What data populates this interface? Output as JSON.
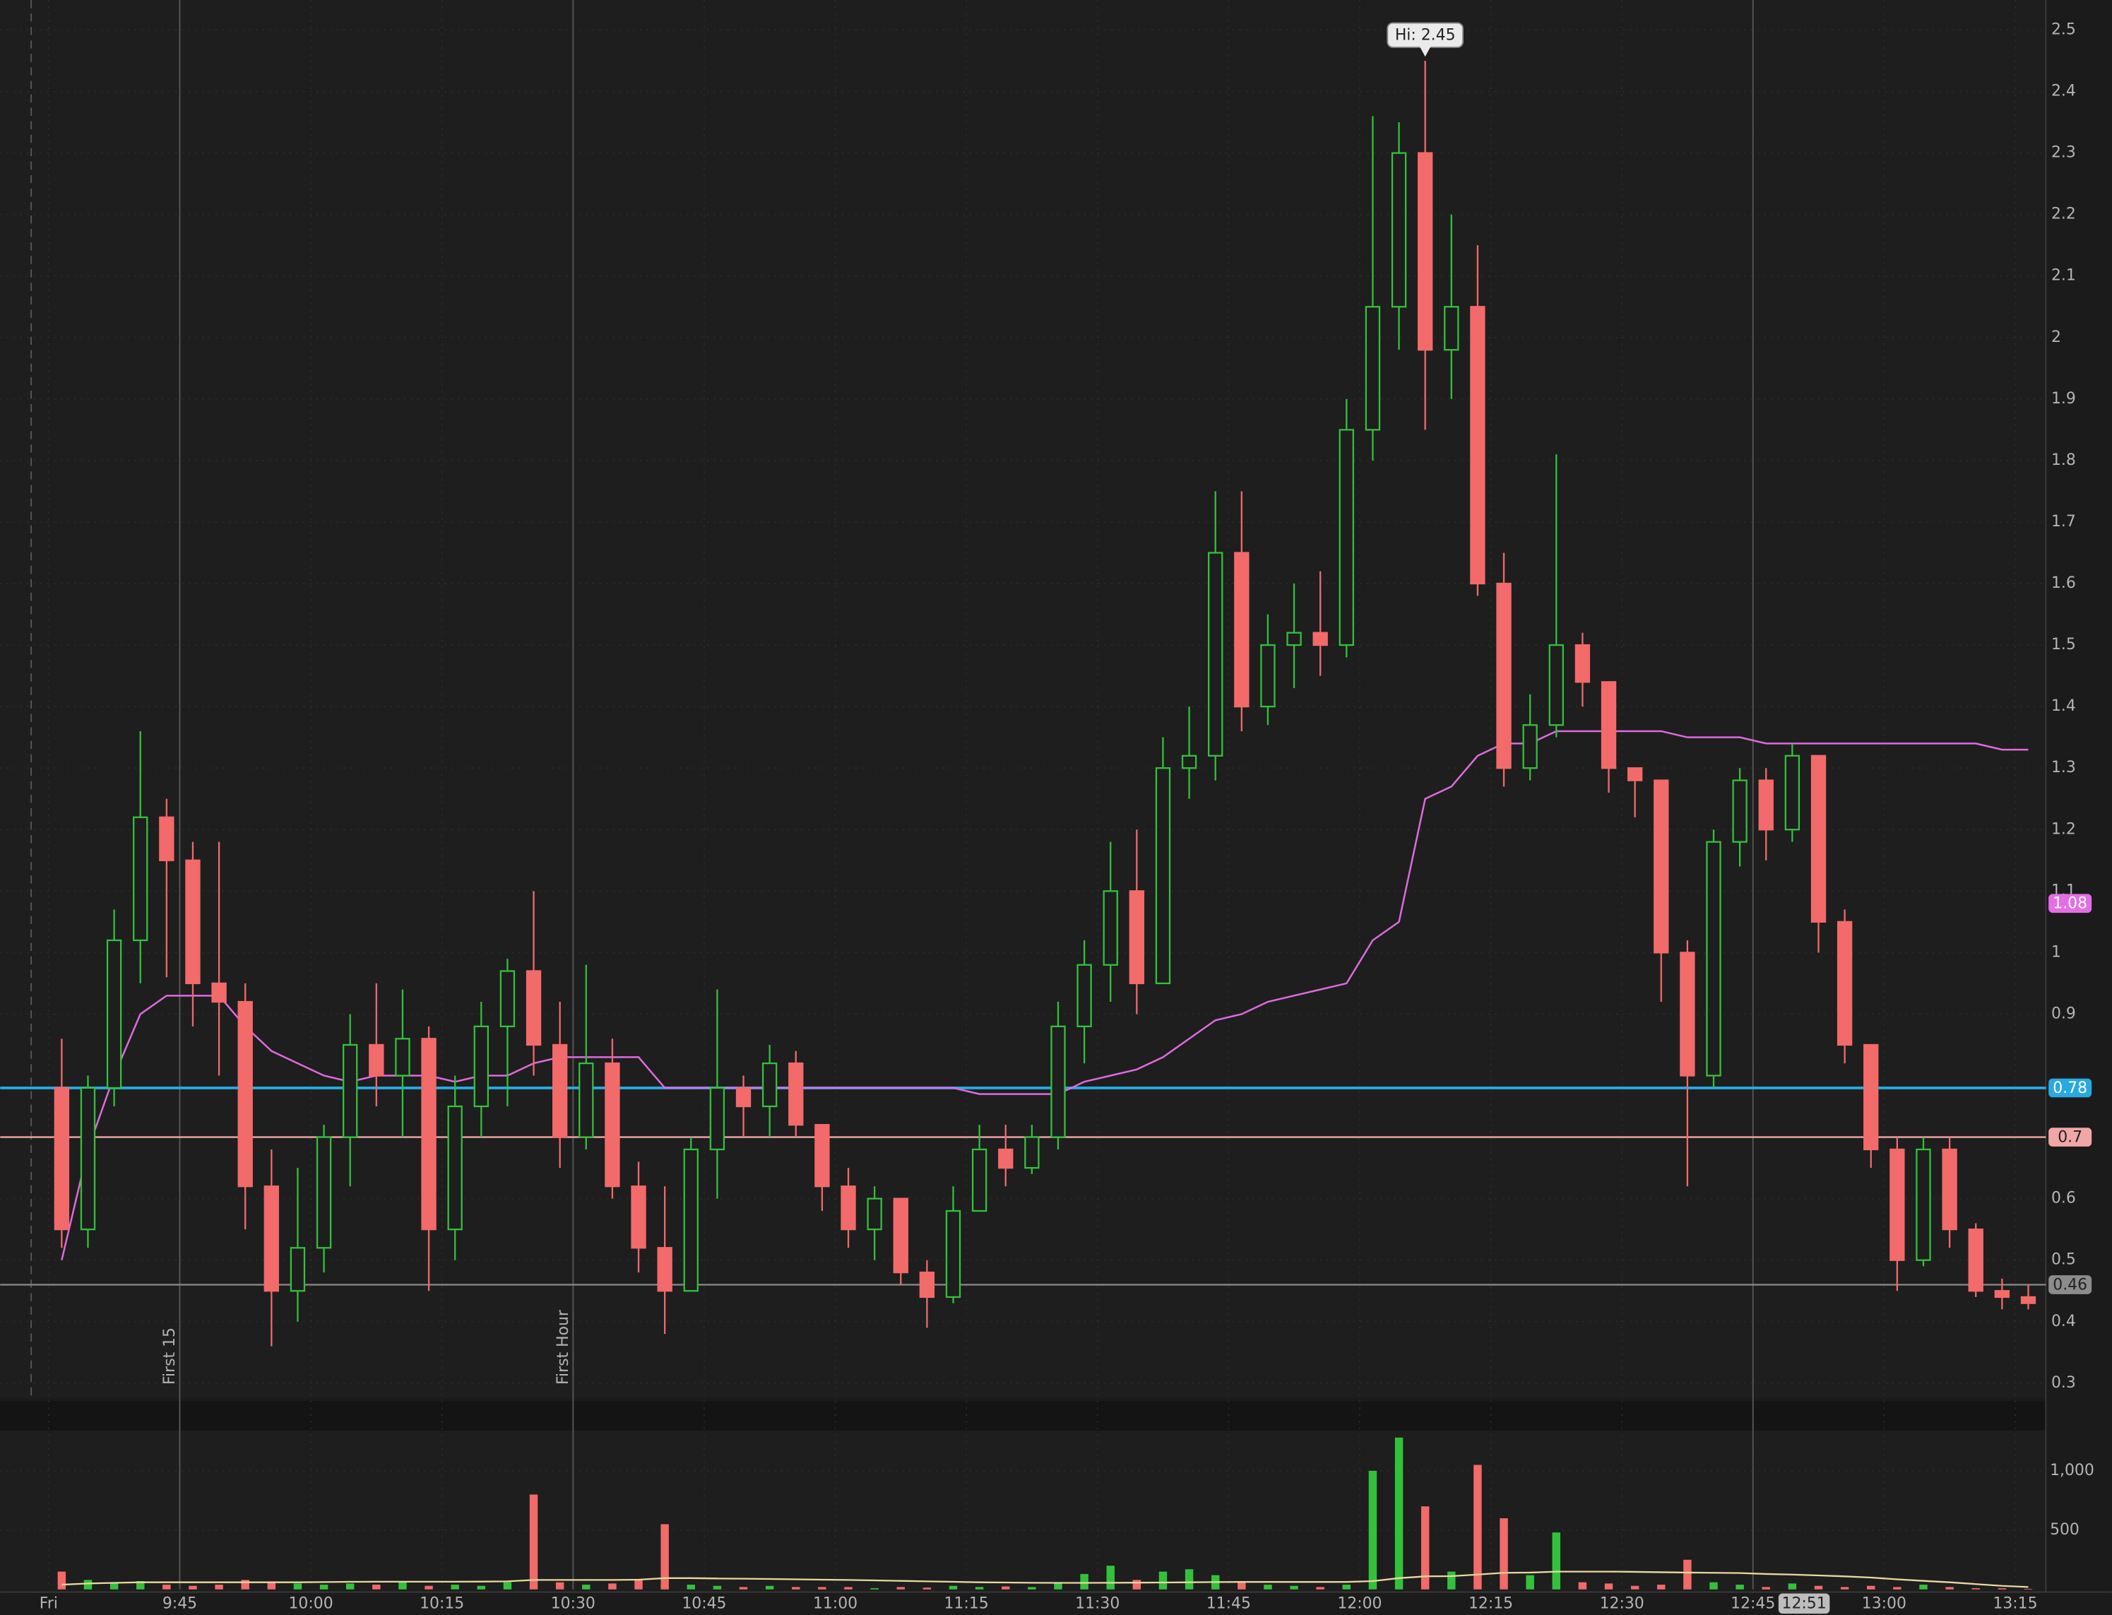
{
  "chart_data": {
    "type": "candlestick",
    "x": [
      "9:30",
      "9:33",
      "9:36",
      "9:39",
      "9:42",
      "9:45",
      "9:48",
      "9:51",
      "9:54",
      "9:57",
      "10:00",
      "10:03",
      "10:06",
      "10:09",
      "10:12",
      "10:15",
      "10:18",
      "10:21",
      "10:24",
      "10:27",
      "10:30",
      "10:33",
      "10:36",
      "10:39",
      "10:42",
      "10:45",
      "10:48",
      "10:51",
      "10:54",
      "10:57",
      "11:00",
      "11:03",
      "11:06",
      "11:09",
      "11:12",
      "11:15",
      "11:18",
      "11:21",
      "11:24",
      "11:27",
      "11:30",
      "11:33",
      "11:36",
      "11:39",
      "11:42",
      "11:45",
      "11:48",
      "11:51",
      "11:54",
      "11:57",
      "12:00",
      "12:03",
      "12:06",
      "12:09",
      "12:12",
      "12:15",
      "12:18",
      "12:21",
      "12:24",
      "12:27",
      "12:30",
      "12:33",
      "12:36",
      "12:39",
      "12:42",
      "12:45",
      "12:48",
      "12:51",
      "12:54",
      "12:57",
      "13:00",
      "13:03",
      "13:06",
      "13:09",
      "13:12",
      "13:15"
    ],
    "open": [
      0.78,
      0.55,
      0.78,
      1.02,
      1.22,
      1.15,
      0.95,
      0.92,
      0.62,
      0.45,
      0.52,
      0.7,
      0.85,
      0.8,
      0.86,
      0.55,
      0.75,
      0.88,
      0.97,
      0.85,
      0.7,
      0.82,
      0.62,
      0.52,
      0.45,
      0.68,
      0.78,
      0.75,
      0.82,
      0.72,
      0.62,
      0.55,
      0.6,
      0.48,
      0.44,
      0.58,
      0.68,
      0.65,
      0.7,
      0.88,
      0.98,
      1.1,
      0.95,
      1.3,
      1.32,
      1.65,
      1.4,
      1.5,
      1.52,
      1.5,
      1.85,
      2.05,
      2.3,
      1.98,
      2.05,
      1.6,
      1.3,
      1.37,
      1.5,
      1.44,
      1.3,
      1.28,
      1.0,
      0.8,
      1.18,
      1.28,
      1.2,
      1.32,
      1.05,
      0.85,
      0.68,
      0.5,
      0.68,
      0.55,
      0.45,
      0.44
    ],
    "high": [
      0.86,
      0.8,
      1.07,
      1.36,
      1.25,
      1.18,
      1.18,
      0.95,
      0.68,
      0.65,
      0.72,
      0.9,
      0.95,
      0.94,
      0.88,
      0.8,
      0.92,
      0.99,
      1.1,
      0.92,
      0.98,
      0.86,
      0.66,
      0.62,
      0.7,
      0.94,
      0.8,
      0.85,
      0.84,
      0.72,
      0.65,
      0.62,
      0.6,
      0.5,
      0.62,
      0.72,
      0.72,
      0.72,
      0.92,
      1.02,
      1.18,
      1.2,
      1.35,
      1.4,
      1.75,
      1.75,
      1.55,
      1.6,
      1.62,
      1.9,
      2.36,
      2.35,
      2.45,
      2.2,
      2.15,
      1.65,
      1.42,
      1.81,
      1.52,
      1.44,
      1.3,
      1.28,
      1.02,
      1.2,
      1.3,
      1.3,
      1.34,
      1.32,
      1.07,
      0.85,
      0.7,
      0.7,
      0.7,
      0.56,
      0.47,
      0.46
    ],
    "low": [
      0.52,
      0.52,
      0.75,
      0.95,
      0.96,
      0.88,
      0.8,
      0.55,
      0.36,
      0.4,
      0.48,
      0.62,
      0.75,
      0.7,
      0.45,
      0.5,
      0.7,
      0.75,
      0.8,
      0.65,
      0.68,
      0.6,
      0.48,
      0.38,
      0.45,
      0.6,
      0.7,
      0.7,
      0.7,
      0.58,
      0.52,
      0.5,
      0.46,
      0.39,
      0.43,
      0.58,
      0.62,
      0.64,
      0.68,
      0.82,
      0.92,
      0.9,
      0.95,
      1.25,
      1.28,
      1.36,
      1.37,
      1.43,
      1.45,
      1.48,
      1.8,
      1.98,
      1.85,
      1.9,
      1.58,
      1.27,
      1.28,
      1.35,
      1.4,
      1.26,
      1.22,
      0.92,
      0.62,
      0.78,
      1.14,
      1.15,
      1.18,
      1.0,
      0.82,
      0.65,
      0.45,
      0.49,
      0.52,
      0.44,
      0.42,
      0.42
    ],
    "close": [
      0.55,
      0.78,
      1.02,
      1.22,
      1.15,
      0.95,
      0.92,
      0.62,
      0.45,
      0.52,
      0.7,
      0.85,
      0.8,
      0.86,
      0.55,
      0.75,
      0.88,
      0.97,
      0.85,
      0.7,
      0.82,
      0.62,
      0.52,
      0.45,
      0.68,
      0.78,
      0.75,
      0.82,
      0.72,
      0.62,
      0.55,
      0.6,
      0.48,
      0.44,
      0.58,
      0.68,
      0.65,
      0.7,
      0.88,
      0.98,
      1.1,
      0.95,
      1.3,
      1.32,
      1.65,
      1.4,
      1.5,
      1.52,
      1.5,
      1.85,
      2.05,
      2.3,
      1.98,
      2.05,
      1.6,
      1.3,
      1.37,
      1.5,
      1.44,
      1.3,
      1.28,
      1.0,
      0.8,
      1.18,
      1.28,
      1.2,
      1.32,
      1.05,
      0.85,
      0.68,
      0.5,
      0.68,
      0.55,
      0.45,
      0.44,
      0.43
    ],
    "up_color": "#33c13c",
    "down_color": "#f26a6a",
    "overlay": {
      "color": "#df6ae0",
      "values": [
        0.5,
        0.68,
        0.8,
        0.9,
        0.93,
        0.93,
        0.93,
        0.88,
        0.84,
        0.82,
        0.8,
        0.79,
        0.8,
        0.8,
        0.8,
        0.79,
        0.8,
        0.8,
        0.82,
        0.83,
        0.83,
        0.83,
        0.83,
        0.78,
        0.78,
        0.78,
        0.78,
        0.78,
        0.78,
        0.78,
        0.78,
        0.78,
        0.78,
        0.78,
        0.78,
        0.77,
        0.77,
        0.77,
        0.77,
        0.79,
        0.8,
        0.81,
        0.83,
        0.86,
        0.89,
        0.9,
        0.92,
        0.93,
        0.94,
        0.95,
        1.02,
        1.05,
        1.25,
        1.27,
        1.32,
        1.34,
        1.34,
        1.36,
        1.36,
        1.36,
        1.36,
        1.36,
        1.35,
        1.35,
        1.35,
        1.34,
        1.34,
        1.34,
        1.34,
        1.34,
        1.34,
        1.34,
        1.34,
        1.34,
        1.33,
        1.33
      ]
    },
    "ylim": [
      0.28,
      2.54
    ],
    "yticks": [
      2.5,
      2.4,
      2.3,
      2.2,
      2.1,
      2,
      1.9,
      1.8,
      1.7,
      1.6,
      1.5,
      1.4,
      1.3,
      1.2,
      1.1,
      1,
      0.9,
      0.6,
      0.5,
      0.4,
      0.3
    ],
    "levels": [
      {
        "value": 0.78,
        "color": "#29a9e1"
      },
      {
        "value": 0.7,
        "color": "#f2a7a7"
      },
      {
        "value": 0.46,
        "color": "#8c8c8c"
      }
    ],
    "price_tag": {
      "value": 1.08,
      "color": "#e36ee3"
    },
    "high_label": {
      "text": "Hi: 2.45",
      "x": "12:06",
      "y": 2.45
    },
    "xticks": [
      {
        "value": "9:30",
        "label": "Fri"
      },
      "9:45",
      "10:00",
      "10:15",
      "10:30",
      "10:45",
      "11:00",
      "11:15",
      "11:30",
      "11:45",
      "12:00",
      "12:15",
      "12:30",
      "12:45",
      "13:00",
      "13:15"
    ],
    "vlines": [
      {
        "x": "9:45",
        "label": "First 15"
      },
      {
        "x": "10:30",
        "label": "First Hour"
      },
      {
        "x": "12:45"
      }
    ],
    "cursor_label": "12:51",
    "volume": {
      "values": [
        150,
        80,
        60,
        70,
        40,
        30,
        40,
        80,
        60,
        50,
        40,
        50,
        40,
        60,
        30,
        40,
        30,
        60,
        800,
        60,
        40,
        50,
        80,
        550,
        40,
        30,
        20,
        30,
        20,
        20,
        20,
        10,
        20,
        15,
        30,
        20,
        25,
        20,
        60,
        130,
        200,
        80,
        150,
        170,
        120,
        60,
        40,
        30,
        20,
        40,
        1000,
        1280,
        700,
        150,
        1050,
        600,
        120,
        480,
        60,
        50,
        30,
        40,
        250,
        60,
        40,
        20,
        50,
        30,
        20,
        30,
        20,
        40,
        20,
        10,
        10,
        5
      ],
      "average": [
        40,
        50,
        55,
        60,
        60,
        60,
        60,
        60,
        60,
        60,
        62,
        64,
        65,
        65,
        65,
        65,
        66,
        68,
        80,
        80,
        80,
        80,
        82,
        95,
        95,
        92,
        90,
        88,
        85,
        82,
        80,
        76,
        72,
        68,
        64,
        60,
        58,
        56,
        55,
        55,
        56,
        57,
        58,
        60,
        62,
        63,
        63,
        63,
        63,
        63,
        70,
        95,
        110,
        112,
        125,
        140,
        142,
        150,
        150,
        150,
        148,
        145,
        142,
        140,
        138,
        130,
        125,
        118,
        110,
        100,
        85,
        72,
        60,
        45,
        30,
        20
      ],
      "average_color": "#e8d9a0",
      "ylim": [
        0,
        1340
      ],
      "yticks": [
        500,
        {
          "value": 1000,
          "label": "1,000"
        }
      ]
    }
  }
}
